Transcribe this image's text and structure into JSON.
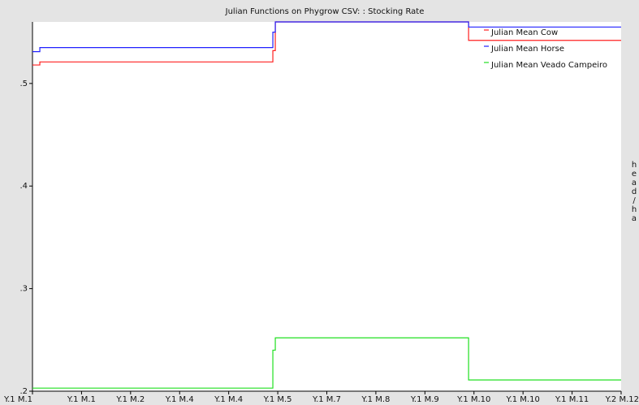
{
  "chart_data": {
    "type": "line",
    "step": "post",
    "title": "Julian Functions on Phygrow CSV: : Stocking Rate",
    "y2_label": "head/ha",
    "x": [
      0,
      0.15,
      4.9,
      4.95,
      8.89,
      12
    ],
    "xlim": [
      0,
      12
    ],
    "xticks": [
      {
        "value": 0,
        "label": "Y.1 M.1"
      },
      {
        "value": 1,
        "label": "Y.1 M.1"
      },
      {
        "value": 2,
        "label": "Y.1 M.2"
      },
      {
        "value": 3,
        "label": "Y.1 M.4"
      },
      {
        "value": 4,
        "label": "Y.1 M.4"
      },
      {
        "value": 5,
        "label": "Y.1 M.5"
      },
      {
        "value": 6,
        "label": "Y.1 M.7"
      },
      {
        "value": 7,
        "label": "Y.1 M.8"
      },
      {
        "value": 8,
        "label": "Y.1 M.9"
      },
      {
        "value": 9,
        "label": "Y.1 M.10"
      },
      {
        "value": 10,
        "label": "Y.1 M.10"
      },
      {
        "value": 11,
        "label": "Y.1 M.11"
      },
      {
        "value": 12,
        "label": "Y.2 M.12"
      }
    ],
    "ylim": [
      0.2,
      0.56
    ],
    "yticks": [
      {
        "value": 0.2,
        "label": ".2"
      },
      {
        "value": 0.3,
        "label": ".3"
      },
      {
        "value": 0.4,
        "label": ".4"
      },
      {
        "value": 0.5,
        "label": ".5"
      }
    ],
    "legend": "top-right",
    "series": [
      {
        "name": "Julian Mean Cow",
        "color": "#ff2020",
        "values": [
          0.518,
          0.521,
          0.532,
          0.56,
          0.542,
          0.542
        ]
      },
      {
        "name": "Julian Mean Horse",
        "color": "#2020ff",
        "values": [
          0.531,
          0.535,
          0.55,
          0.56,
          0.555,
          0.555
        ]
      },
      {
        "name": "Julian Mean Veado Campeiro",
        "color": "#20e020",
        "values": [
          0.203,
          0.203,
          0.24,
          0.252,
          0.211,
          0.211
        ]
      }
    ]
  }
}
